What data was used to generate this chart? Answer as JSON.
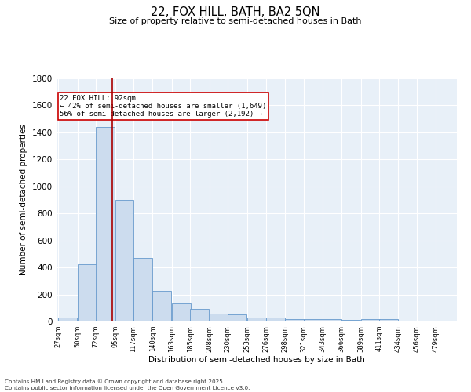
{
  "title_line1": "22, FOX HILL, BATH, BA2 5QN",
  "title_line2": "Size of property relative to semi-detached houses in Bath",
  "categories": [
    "27sqm",
    "50sqm",
    "72sqm",
    "95sqm",
    "117sqm",
    "140sqm",
    "163sqm",
    "185sqm",
    "208sqm",
    "230sqm",
    "253sqm",
    "276sqm",
    "298sqm",
    "321sqm",
    "343sqm",
    "366sqm",
    "389sqm",
    "411sqm",
    "434sqm",
    "456sqm",
    "479sqm"
  ],
  "values": [
    30,
    425,
    1440,
    900,
    470,
    225,
    135,
    95,
    60,
    50,
    30,
    30,
    20,
    15,
    15,
    10,
    20,
    15,
    0,
    0,
    0
  ],
  "bar_color": "#ccdcee",
  "bar_edge_color": "#6699cc",
  "background_color": "#e8f0f8",
  "vline_x": 92,
  "vline_color": "#aa0000",
  "ylabel": "Number of semi-detached properties",
  "xlabel": "Distribution of semi-detached houses by size in Bath",
  "ylim": [
    0,
    1800
  ],
  "annotation_title": "22 FOX HILL: 92sqm",
  "annotation_line1": "← 42% of semi-detached houses are smaller (1,649)",
  "annotation_line2": "56% of semi-detached houses are larger (2,192) →",
  "footer_line1": "Contains HM Land Registry data © Crown copyright and database right 2025.",
  "footer_line2": "Contains public sector information licensed under the Open Government Licence v3.0.",
  "bin_width": 23
}
